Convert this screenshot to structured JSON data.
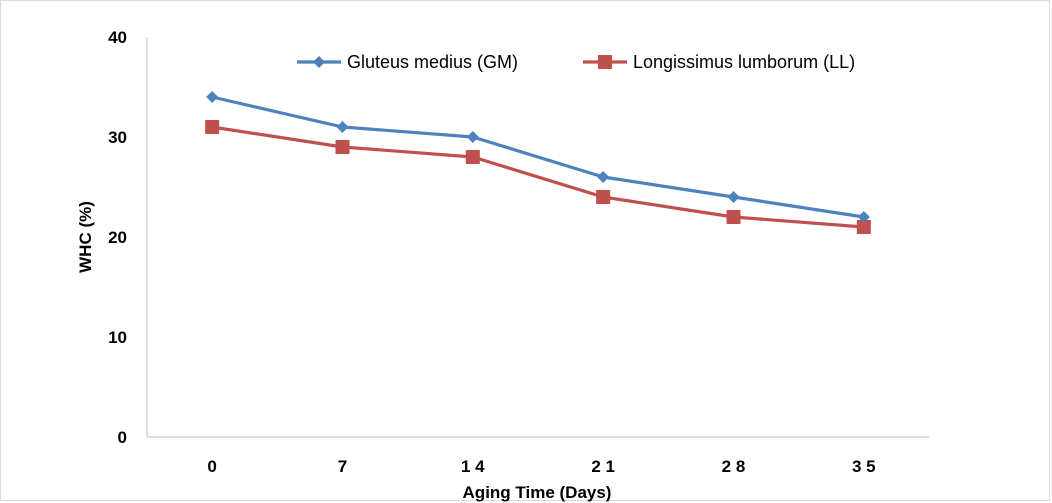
{
  "chart_data": {
    "type": "line",
    "title": "",
    "xlabel": "Aging Time (Days)",
    "ylabel": "WHC (%)",
    "categories": [
      "0",
      "7",
      "1 4",
      "2 1",
      "2 8",
      "3 5"
    ],
    "ylim": [
      0,
      40
    ],
    "yticks": [
      0,
      10,
      20,
      30,
      40
    ],
    "grid": false,
    "legend_position": "top",
    "series": [
      {
        "name": "Gluteus medius (GM)",
        "values": [
          34,
          31,
          30,
          26,
          24,
          22
        ],
        "color": "#4f81bd",
        "marker": "diamond"
      },
      {
        "name": "Longissimus lumborum (LL)",
        "values": [
          31,
          29,
          28,
          24,
          22,
          21
        ],
        "color": "#c0504d",
        "marker": "square"
      }
    ]
  }
}
